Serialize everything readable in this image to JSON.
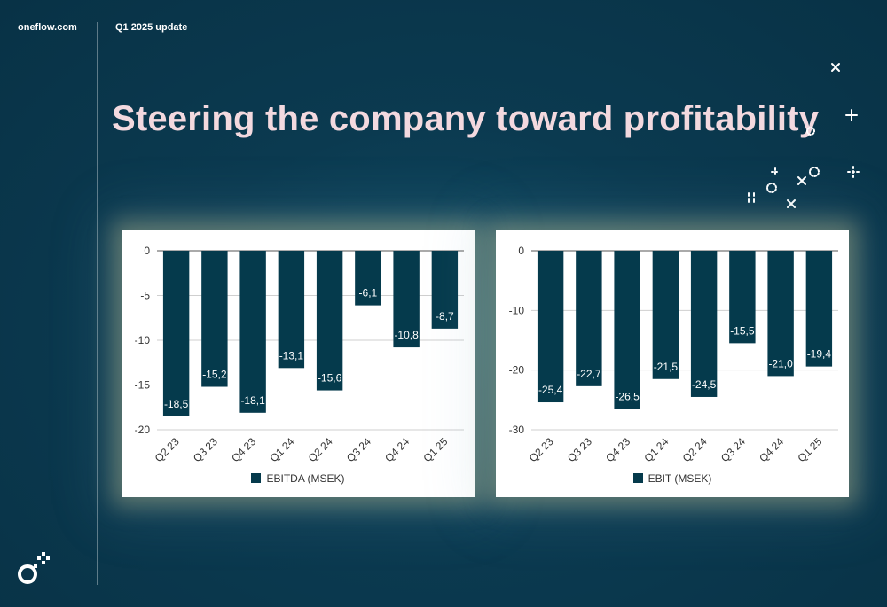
{
  "header": {
    "brand": "oneflow.com",
    "update": "Q1 2025 update"
  },
  "slide": {
    "title": "Steering the company toward profitability"
  },
  "colors": {
    "bar": "#053a4c",
    "background": "#0b3a50",
    "title": "#f3d9df"
  },
  "chart_data": [
    {
      "type": "bar",
      "categories": [
        "Q2 23",
        "Q3 23",
        "Q4 23",
        "Q1 24",
        "Q2 24",
        "Q3 24",
        "Q4 24",
        "Q1 25"
      ],
      "series": [
        {
          "name": "EBITDA (MSEK)",
          "values": [
            -18.5,
            -15.2,
            -18.1,
            -13.1,
            -15.6,
            -6.1,
            -10.8,
            -8.7
          ],
          "labels": [
            "-18,5",
            "-15,2",
            "-18,1",
            "-13,1",
            "-15,6",
            "-6,1",
            "-10,8",
            "-8,7"
          ]
        }
      ],
      "ylim": [
        -20,
        0
      ],
      "yticks": [
        0,
        -5,
        -10,
        -15,
        -20
      ],
      "ytick_labels": [
        "0",
        "-5",
        "-10",
        "-15",
        "-20"
      ],
      "grid": true,
      "legend": "bottom"
    },
    {
      "type": "bar",
      "categories": [
        "Q2 23",
        "Q3 23",
        "Q4 23",
        "Q1 24",
        "Q2 24",
        "Q3 24",
        "Q4 24",
        "Q1 25"
      ],
      "series": [
        {
          "name": "EBIT (MSEK)",
          "values": [
            -25.4,
            -22.7,
            -26.5,
            -21.5,
            -24.5,
            -15.5,
            -21.0,
            -19.4
          ],
          "labels": [
            "-25,4",
            "-22,7",
            "-26,5",
            "-21,5",
            "-24,5",
            "-15,5",
            "-21,0",
            "-19,4"
          ]
        }
      ],
      "ylim": [
        -30,
        0
      ],
      "yticks": [
        0,
        -10,
        -20,
        -30
      ],
      "ytick_labels": [
        "0",
        "-10",
        "-20",
        "-30"
      ],
      "grid": true,
      "legend": "bottom"
    }
  ]
}
